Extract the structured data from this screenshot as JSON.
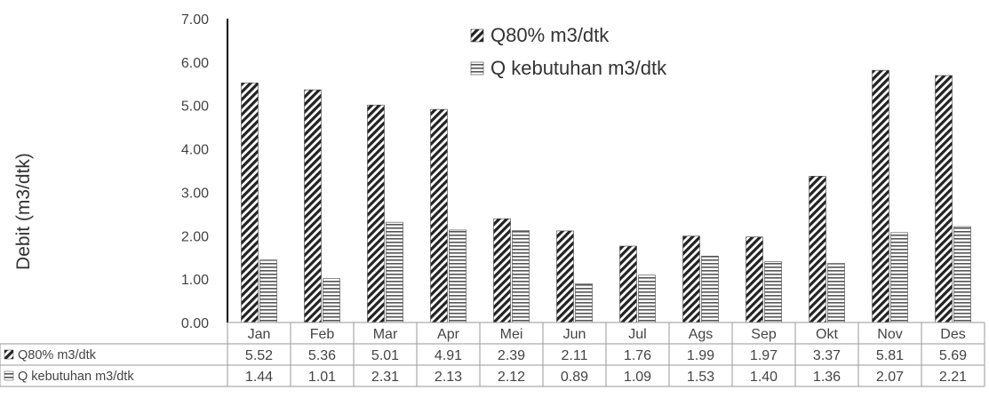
{
  "chart_data": {
    "type": "bar",
    "title": "",
    "xlabel": "",
    "ylabel": "Debit (m3/dtk)",
    "ylim": [
      0,
      7
    ],
    "yticks": [
      "0.00",
      "1.00",
      "2.00",
      "3.00",
      "4.00",
      "5.00",
      "6.00",
      "7.00"
    ],
    "grid": false,
    "legend_position": "top-center",
    "categories": [
      "Jan",
      "Feb",
      "Mar",
      "Apr",
      "Mei",
      "Jun",
      "Jul",
      "Ags",
      "Sep",
      "Okt",
      "Nov",
      "Des"
    ],
    "series": [
      {
        "name": "Q80% m3/dtk",
        "pattern": "diagonal-stripes",
        "color": "#222222",
        "values": [
          5.52,
          5.36,
          5.01,
          4.91,
          2.39,
          2.11,
          1.76,
          1.99,
          1.97,
          3.37,
          5.81,
          5.69
        ],
        "labels": [
          "5.52",
          "5.36",
          "5.01",
          "4.91",
          "2.39",
          "2.11",
          "1.76",
          "1.99",
          "1.97",
          "3.37",
          "5.81",
          "5.69"
        ]
      },
      {
        "name": "Q kebutuhan m3/dtk",
        "pattern": "horizontal-stripes",
        "color": "#555555",
        "values": [
          1.44,
          1.01,
          2.31,
          2.13,
          2.12,
          0.89,
          1.09,
          1.53,
          1.4,
          1.36,
          2.07,
          2.21
        ],
        "labels": [
          "1.44",
          "1.01",
          "2.31",
          "2.13",
          "2.12",
          "0.89",
          "1.09",
          "1.53",
          "1.40",
          "1.36",
          "2.07",
          "2.21"
        ]
      }
    ],
    "data_table": true
  }
}
